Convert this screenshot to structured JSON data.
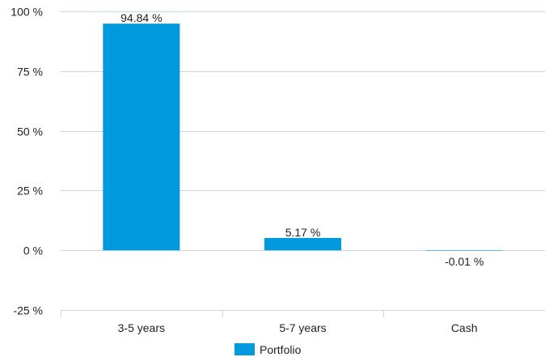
{
  "chart_data": {
    "type": "bar",
    "categories": [
      "3-5 years",
      "5-7 years",
      "Cash"
    ],
    "series": [
      {
        "name": "Portfolio",
        "values": [
          94.84,
          5.17,
          -0.01
        ],
        "labels": [
          "94.84 %",
          "5.17 %",
          "-0.01 %"
        ],
        "color": "#0099dd"
      }
    ],
    "y_ticks": [
      {
        "value": 100,
        "label": "100 %"
      },
      {
        "value": 75,
        "label": "75 %"
      },
      {
        "value": 50,
        "label": "50 %"
      },
      {
        "value": 25,
        "label": "25 %"
      },
      {
        "value": 0,
        "label": "0 %"
      },
      {
        "value": -25,
        "label": "-25 %"
      }
    ],
    "ylim": [
      -25,
      100
    ],
    "grid": true,
    "grid_color": "#c8d7e1",
    "legend_position": "bottom-center"
  }
}
